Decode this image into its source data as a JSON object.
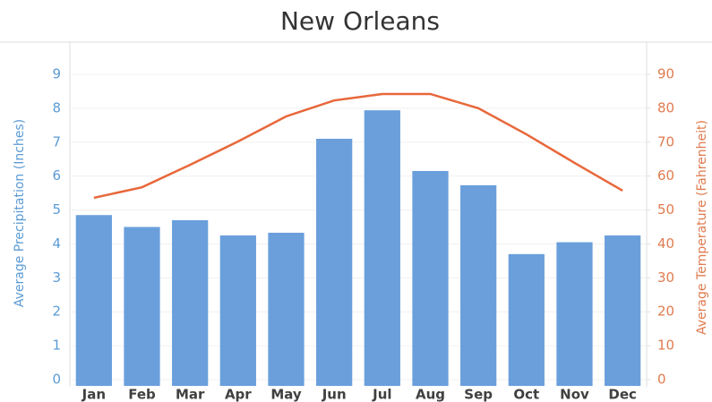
{
  "chart_data": {
    "type": "bar_line",
    "title": "New Orleans",
    "ylabel": "Average Precipitation (Inches)",
    "y2label": "Average Temperature (Fahrenheit)",
    "categories": [
      "Jan",
      "Feb",
      "Mar",
      "Apr",
      "May",
      "Jun",
      "Jul",
      "Aug",
      "Sep",
      "Oct",
      "Nov",
      "Dec"
    ],
    "series": [
      {
        "type": "bar",
        "color": "#6a9fdc",
        "axis": "y",
        "values": [
          4.85,
          4.5,
          4.7,
          4.25,
          4.33,
          7.1,
          7.94,
          6.15,
          5.73,
          3.7,
          4.05,
          4.25
        ]
      },
      {
        "type": "line",
        "color": "#e8673a",
        "axis": "y2",
        "values": [
          53.6,
          56.7,
          63.3,
          70.2,
          77.6,
          82.3,
          84.2,
          84.2,
          80,
          72.3,
          63.9,
          55.7
        ]
      }
    ],
    "ylim": [
      0,
      9
    ],
    "yticks": [
      0,
      1,
      2,
      3,
      4,
      5,
      6,
      7,
      8,
      9
    ],
    "y2lim": [
      0,
      90
    ],
    "y2ticks": [
      0,
      10,
      20,
      30,
      40,
      50,
      60,
      70,
      80,
      90
    ],
    "grid": true
  }
}
